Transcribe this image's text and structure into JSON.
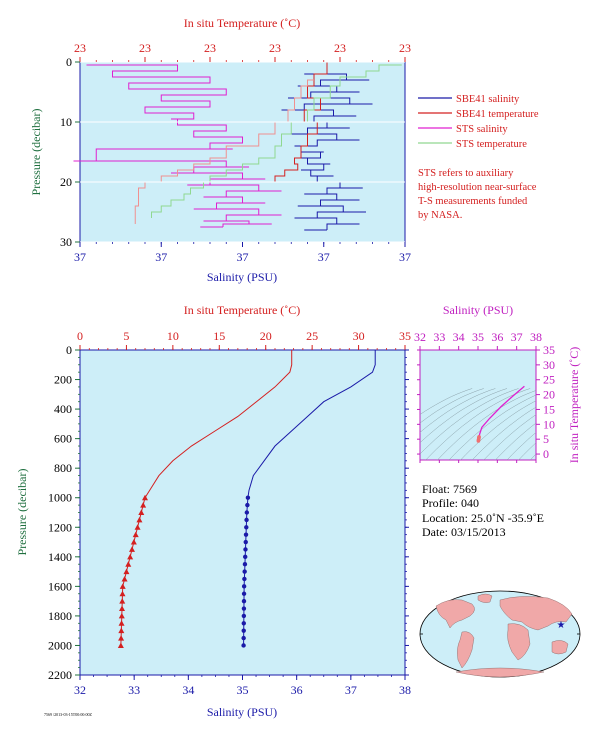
{
  "colors": {
    "panel_bg": "#cdeef8",
    "salinity": "#1a1aa8",
    "temperature": "#d42020",
    "sts_salinity": "#e020d0",
    "sts_temperature": "#90d890",
    "sts_temperature_alt": "#f09090",
    "axis_temperature": "#d42020",
    "axis_salinity": "#1a1aa8",
    "axis_pressure": "#207040",
    "axis_ts": "#c020c0",
    "note": "#d42020"
  },
  "chart_data": [
    {
      "type": "line",
      "panel": "near-surface",
      "top_axis_label": "In situ Temperature (˚C)",
      "top_ticks": [
        "23",
        "23",
        "23",
        "23",
        "23",
        "23"
      ],
      "bottom_axis_label": "Salinity (PSU)",
      "bottom_ticks": [
        "37",
        "37",
        "37",
        "37",
        "37"
      ],
      "left_axis_label": "Pressure (decibar)",
      "left_ticks": [
        "0",
        "10",
        "20",
        "30"
      ],
      "ylim": [
        0,
        30
      ],
      "legend": [
        {
          "label": "SBE41 salinity",
          "color": "#1a1aa8"
        },
        {
          "label": "SBE41 temperature",
          "color": "#d42020"
        },
        {
          "label": "STS salinity",
          "color": "#e020d0"
        },
        {
          "label": "STS temperature",
          "color": "#90d890"
        }
      ],
      "note": [
        "STS refers to auxiliary",
        "high-resolution near-surface",
        "T-S measurements funded",
        "by NASA."
      ],
      "series": [
        {
          "name": "SBE41 salinity",
          "x_frac": [
            0.77,
            0.76,
            0.82,
            0.74,
            0.79,
            0.71,
            0.83,
            0.69,
            0.78,
            0.72,
            0.76,
            0.7,
            0.79,
            0.73,
            0.68,
            0.74,
            0.7,
            0.75,
            0.71,
            0.73,
            0.8,
            0.76,
            0.79,
            0.74,
            0.81,
            0.73,
            0.79,
            0.76
          ],
          "y": [
            0,
            2,
            3,
            4,
            5,
            6,
            7,
            8,
            9,
            10,
            11,
            12,
            13,
            14,
            15,
            16,
            17,
            18,
            19,
            20,
            21,
            22,
            23,
            24,
            25,
            26,
            27,
            28
          ]
        },
        {
          "name": "SBE41 temperature",
          "x_frac": [
            0.78,
            0.76,
            0.72,
            0.7,
            0.74,
            0.69,
            0.73,
            0.7,
            0.68,
            0.66,
            0.67,
            0.63,
            0.6
          ],
          "y": [
            0,
            2,
            4,
            6,
            8,
            10,
            12,
            14,
            16,
            17,
            18,
            19,
            20
          ]
        },
        {
          "name": "STS salinity",
          "x_frac": [
            0.02,
            0.3,
            0.1,
            0.4,
            0.15,
            0.45,
            0.25,
            0.4,
            0.2,
            0.35,
            0.3,
            0.45,
            0.35,
            0.5,
            0.4,
            0.05,
            0.45,
            0.35,
            0.5,
            0.4,
            0.55,
            0.45,
            0.5,
            0.42,
            0.55,
            0.45,
            0.52,
            0.44
          ],
          "y": [
            0.5,
            1.5,
            2.5,
            3.5,
            4.5,
            5.5,
            6.5,
            7.5,
            8.5,
            9.5,
            10.5,
            11.5,
            12.5,
            13.5,
            14.5,
            16.5,
            17.5,
            18.5,
            19.5,
            20.5,
            21.5,
            22.5,
            23.5,
            24.5,
            25.5,
            26.5,
            27.0,
            27.5
          ]
        },
        {
          "name": "STS temperature",
          "x_frac": [
            0.99,
            0.92,
            0.88,
            0.8,
            0.77,
            0.72,
            0.7,
            0.65,
            0.62,
            0.6,
            0.55,
            0.5,
            0.45,
            0.4,
            0.38,
            0.34,
            0.32,
            0.28,
            0.25,
            0.22
          ],
          "y": [
            0.5,
            1.5,
            2.5,
            4,
            6,
            8,
            10,
            12,
            14,
            16,
            17,
            18,
            19,
            20,
            21,
            22,
            23,
            24,
            25,
            26
          ]
        },
        {
          "name": "",
          "x_frac": [
            0.72,
            0.7,
            0.68,
            0.66,
            0.64,
            0.6,
            0.55,
            0.45,
            0.4,
            0.35,
            0.3,
            0.25,
            0.2,
            0.18,
            0.17
          ],
          "y": [
            3,
            4,
            6,
            8,
            10,
            12,
            14,
            16,
            17,
            18,
            19,
            20,
            21,
            24,
            27
          ]
        }
      ]
    },
    {
      "type": "line",
      "panel": "full-profile",
      "top_axis_label": "In situ Temperature (˚C)",
      "top_ticks": [
        0,
        5,
        10,
        15,
        20,
        25,
        30,
        35
      ],
      "bottom_axis_label": "Salinity (PSU)",
      "bottom_ticks": [
        32,
        33,
        34,
        35,
        36,
        37,
        38
      ],
      "left_axis_label": "Pressure (decibar)",
      "left_ticks": [
        0,
        200,
        400,
        600,
        800,
        1000,
        1200,
        1400,
        1600,
        1800,
        2000,
        2200
      ],
      "xlim_temperature": [
        0,
        35
      ],
      "xlim_salinity": [
        32,
        38
      ],
      "ylim": [
        0,
        2200
      ],
      "series": [
        {
          "name": "temperature",
          "x": [
            22.8,
            22.8,
            22.6,
            21.0,
            19.0,
            17.0,
            14.5,
            12.0,
            10.0,
            8.5,
            7.5,
            7.0,
            6.6,
            6.2,
            5.8,
            5.4,
            5.0,
            4.6,
            4.4
          ],
          "y": [
            0,
            100,
            150,
            250,
            350,
            450,
            550,
            650,
            750,
            850,
            950,
            1000,
            1100,
            1200,
            1300,
            1400,
            1500,
            1600,
            2000
          ]
        },
        {
          "name": "salinity",
          "x": [
            37.45,
            37.45,
            37.4,
            37.0,
            36.5,
            36.2,
            35.9,
            35.6,
            35.4,
            35.2,
            35.12,
            35.1,
            35.08,
            35.07,
            35.06,
            35.05,
            35.04,
            35.03,
            35.02
          ],
          "y": [
            0,
            100,
            150,
            250,
            350,
            450,
            550,
            650,
            750,
            850,
            950,
            1000,
            1100,
            1200,
            1300,
            1400,
            1500,
            1600,
            2000
          ]
        }
      ],
      "markers_pressure": [
        1000,
        1050,
        1100,
        1150,
        1200,
        1250,
        1300,
        1350,
        1400,
        1450,
        1500,
        1550,
        1600,
        1650,
        1700,
        1750,
        1800,
        1850,
        1900,
        1950,
        2000
      ]
    },
    {
      "type": "line",
      "panel": "t-s-diagram",
      "top_axis_label": "Salinity (PSU)",
      "top_ticks": [
        32,
        33,
        34,
        35,
        36,
        37,
        38
      ],
      "right_axis_label": "In situ Temperature (˚C)",
      "right_ticks": [
        0,
        5,
        10,
        15,
        20,
        25,
        30,
        35
      ],
      "xlim": [
        32,
        38
      ],
      "ylim": [
        -2,
        35
      ],
      "series": [
        {
          "name": "",
          "x": [
            35.02,
            35.05,
            35.1,
            35.2,
            35.6,
            36.2,
            36.8,
            37.4
          ],
          "y": [
            4.4,
            5.8,
            7.0,
            9.0,
            12.0,
            16.0,
            19.5,
            22.8
          ]
        }
      ]
    }
  ],
  "float_info": {
    "float": "Float:  7569",
    "profile": "Profile:  040",
    "location": "Location:  25.0˚N  -35.9˚E",
    "date": "Date:  03/15/2013"
  },
  "footer_text": "7569 /2013-03-15T00:00:00Z",
  "map": {
    "marker_lat": 25.0,
    "marker_lon": -35.9
  }
}
